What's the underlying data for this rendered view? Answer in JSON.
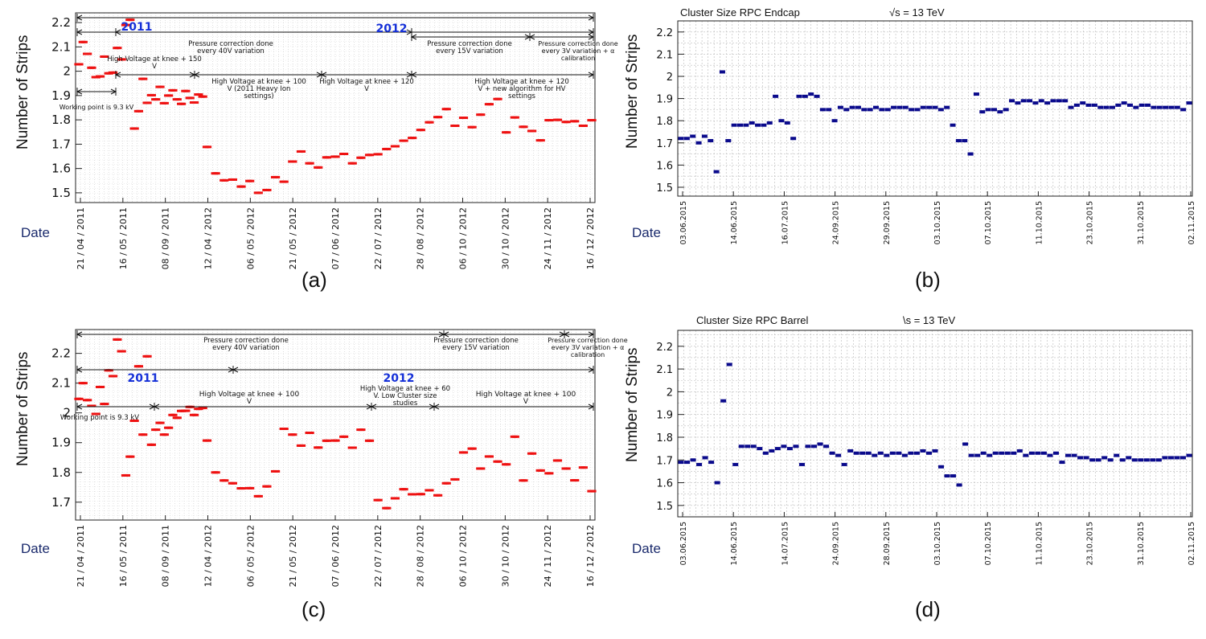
{
  "common": {
    "ylabel": "Number of Strips",
    "date_label": "Date"
  },
  "chart_data": [
    {
      "id": "a",
      "caption": "(a)",
      "type": "scatter",
      "ylabel": "Number of Strips",
      "xlabel": "Date",
      "ylim": [
        1.46,
        2.24
      ],
      "yticks": [
        1.5,
        1.6,
        1.7,
        1.8,
        1.9,
        2,
        2.1,
        2.2
      ],
      "ytick_labels": [
        "1.5",
        "1.6",
        "1.7",
        "1.8",
        "1.9",
        "2",
        "2.1",
        "2.2"
      ],
      "xticks": [
        "21 / 04 / 2011",
        "16 / 05 / 2011",
        "08 / 09 / 2011",
        "12 / 04 / 2012",
        "06 / 05 / 2012",
        "21 / 05 / 2012",
        "07 / 06 / 2012",
        "22 / 07 / 2012",
        "28 / 08 / 2012",
        "06 / 10 / 2012",
        "30 / 10 / 2012",
        "24 / 11 / 2012",
        "16 / 12 / 2012"
      ],
      "series": [
        {
          "color": "#ee1111",
          "marker": "dash",
          "x": [
            0.0,
            0.1,
            0.2,
            0.3,
            0.4,
            0.5,
            0.6,
            0.7,
            0.8,
            0.9,
            1.0,
            1.1,
            1.2,
            1.3,
            1.4,
            1.5,
            1.6,
            1.7,
            1.8,
            1.9,
            2.0,
            2.1,
            2.2,
            2.3,
            2.4,
            2.5,
            2.6,
            2.7,
            2.8,
            2.9,
            3.0,
            3.2,
            3.4,
            3.6,
            3.8,
            4.0,
            4.2,
            4.4,
            4.6,
            4.8,
            5.0,
            5.2,
            5.4,
            5.6,
            5.8,
            6.0,
            6.2,
            6.4,
            6.6,
            6.8,
            7.0,
            7.2,
            7.4,
            7.6,
            7.8,
            8.0,
            8.2,
            8.4,
            8.6,
            8.8,
            9.0,
            9.2,
            9.4,
            9.6,
            9.8,
            10.0,
            10.2,
            10.4,
            10.6,
            10.8,
            11.0,
            11.2,
            11.4,
            11.6,
            11.8,
            12.0
          ],
          "y": [
            2.02,
            2.12,
            2.08,
            2.01,
            1.98,
            1.97,
            2.06,
            2.0,
            1.99,
            2.1,
            2.04,
            2.19,
            2.22,
            1.76,
            1.84,
            1.96,
            1.87,
            1.91,
            1.88,
            1.94,
            1.86,
            1.9,
            1.93,
            1.88,
            1.87,
            1.91,
            1.89,
            1.88,
            1.9,
            1.9,
            1.68,
            1.58,
            1.56,
            1.55,
            1.53,
            1.54,
            1.5,
            1.52,
            1.56,
            1.55,
            1.62,
            1.67,
            1.63,
            1.6,
            1.65,
            1.64,
            1.66,
            1.63,
            1.64,
            1.66,
            1.65,
            1.68,
            1.7,
            1.71,
            1.73,
            1.75,
            1.79,
            1.82,
            1.84,
            1.78,
            1.8,
            1.77,
            1.83,
            1.86,
            1.89,
            1.74,
            1.81,
            1.78,
            1.75,
            1.72,
            1.79,
            1.8,
            1.8,
            1.79,
            1.78,
            1.79
          ]
        }
      ],
      "annotations": [
        {
          "text": "2011",
          "emphasis": "year"
        },
        {
          "text": "2012",
          "emphasis": "year"
        },
        {
          "text": "Pressure correction done every 40V variation"
        },
        {
          "text": "Pressure correction done every 15V variation"
        },
        {
          "text": "Pressure correction done every 3V variation + α calibration"
        },
        {
          "text": "High Voltage at knee + 150 V"
        },
        {
          "text": "High Voltage at knee + 100 V (2011 Heavy Ion settings)"
        },
        {
          "text": "High Voltage at knee + 120 V"
        },
        {
          "text": "High Voltage at knee + 120 V + new algorithm for HV settings"
        },
        {
          "text": "Working point is 9.3 kV"
        }
      ]
    },
    {
      "id": "b",
      "caption": "(b)",
      "type": "scatter",
      "title": "Cluster Size RPC Endcap",
      "title_right": "√s = 13 TeV",
      "ylabel": "Number of Strips",
      "xlabel": "Date",
      "ylim": [
        1.46,
        2.25
      ],
      "yticks": [
        1.5,
        1.6,
        1.7,
        1.8,
        1.9,
        2,
        2.1,
        2.2
      ],
      "ytick_labels": [
        "1.5",
        "1.6",
        "1.7",
        "1.8",
        "1.9",
        "2",
        "2.1",
        "2.2"
      ],
      "xticks": [
        "03.06.2015",
        "14.06.2015",
        "16.07.2015",
        "24.09.2015",
        "29.09.2015",
        "03.10.2015",
        "07.10.2015",
        "11.10.2015",
        "23.10.2015",
        "31.10.2015",
        "02.11.2015"
      ],
      "series": [
        {
          "color": "#0a0a8c",
          "marker": "square",
          "y": [
            1.72,
            1.72,
            1.73,
            1.7,
            1.73,
            1.71,
            1.57,
            2.02,
            1.71,
            1.78,
            1.78,
            1.78,
            1.79,
            1.78,
            1.78,
            1.79,
            1.91,
            1.8,
            1.79,
            1.72,
            1.91,
            1.91,
            1.92,
            1.91,
            1.85,
            1.85,
            1.8,
            1.86,
            1.85,
            1.86,
            1.86,
            1.85,
            1.85,
            1.86,
            1.85,
            1.85,
            1.86,
            1.86,
            1.86,
            1.85,
            1.85,
            1.86,
            1.86,
            1.86,
            1.85,
            1.86,
            1.78,
            1.71,
            1.71,
            1.65,
            1.92,
            1.84,
            1.85,
            1.85,
            1.84,
            1.85,
            1.89,
            1.88,
            1.89,
            1.89,
            1.88,
            1.89,
            1.88,
            1.89,
            1.89,
            1.89,
            1.86,
            1.87,
            1.88,
            1.87,
            1.87,
            1.86,
            1.86,
            1.86,
            1.87,
            1.88,
            1.87,
            1.86,
            1.87,
            1.87,
            1.86,
            1.86,
            1.86,
            1.86,
            1.86,
            1.85,
            1.88
          ]
        }
      ]
    },
    {
      "id": "c",
      "caption": "(c)",
      "type": "scatter",
      "ylabel": "Number of Strips",
      "xlabel": "Date",
      "ylim": [
        1.64,
        2.28
      ],
      "yticks": [
        1.7,
        1.8,
        1.9,
        2,
        2.1,
        2.2
      ],
      "ytick_labels": [
        "1.7",
        "1.8",
        "1.9",
        "2",
        "2.1",
        "2.2"
      ],
      "xticks": [
        "21 / 04 / 2011",
        "16 / 05 / 2011",
        "08 / 09 / 2011",
        "12 / 04 / 2012",
        "06 / 05 / 2012",
        "21 / 05 / 2012",
        "07 / 06 / 2012",
        "22 / 07 / 2012",
        "28 / 08 / 2012",
        "06 / 10 / 2012",
        "30 / 10 / 2012",
        "24 / 11 / 2012",
        "16 / 12 / 2012"
      ],
      "series": [
        {
          "color": "#ee1111",
          "marker": "dash",
          "x": [
            0.0,
            0.1,
            0.2,
            0.3,
            0.4,
            0.5,
            0.6,
            0.7,
            0.8,
            0.9,
            1.0,
            1.1,
            1.2,
            1.3,
            1.4,
            1.5,
            1.6,
            1.7,
            1.8,
            1.9,
            2.0,
            2.1,
            2.2,
            2.3,
            2.4,
            2.5,
            2.6,
            2.7,
            2.8,
            2.9,
            3.0,
            3.2,
            3.4,
            3.6,
            3.8,
            4.0,
            4.2,
            4.4,
            4.6,
            4.8,
            5.0,
            5.2,
            5.4,
            5.6,
            5.8,
            6.0,
            6.2,
            6.4,
            6.6,
            6.8,
            7.0,
            7.2,
            7.4,
            7.6,
            7.8,
            8.0,
            8.2,
            8.4,
            8.6,
            8.8,
            9.0,
            9.2,
            9.4,
            9.6,
            9.8,
            10.0,
            10.2,
            10.4,
            10.6,
            10.8,
            11.0,
            11.2,
            11.4,
            11.6,
            11.8,
            12.0
          ],
          "y": [
            2.04,
            2.1,
            2.05,
            2.02,
            2.0,
            2.08,
            2.03,
            2.15,
            2.12,
            2.25,
            2.2,
            1.79,
            1.86,
            1.97,
            2.16,
            1.92,
            2.19,
            1.9,
            1.94,
            1.97,
            1.92,
            1.95,
            2.0,
            1.98,
            2.01,
            2.0,
            2.02,
            2.0,
            2.01,
            2.02,
            1.9,
            1.8,
            1.78,
            1.76,
            1.75,
            1.74,
            1.72,
            1.76,
            1.8,
            1.95,
            1.92,
            1.89,
            1.94,
            1.88,
            1.91,
            1.9,
            1.92,
            1.89,
            1.94,
            1.91,
            1.7,
            1.68,
            1.72,
            1.74,
            1.73,
            1.72,
            1.74,
            1.73,
            1.76,
            1.78,
            1.86,
            1.88,
            1.82,
            1.85,
            1.84,
            1.82,
            1.92,
            1.78,
            1.86,
            1.81,
            1.79,
            1.84,
            1.82,
            1.77,
            1.82,
            1.73
          ]
        }
      ],
      "annotations": [
        {
          "text": "Pressure correction done every 40V variation"
        },
        {
          "text": "Pressure correction done every 15V variation"
        },
        {
          "text": "Pressure correction done every 3V variation + α calibration"
        },
        {
          "text": "2011",
          "emphasis": "year"
        },
        {
          "text": "2012",
          "emphasis": "year"
        },
        {
          "text": "High Voltage at knee + 100 V"
        },
        {
          "text": "High Voltage at knee + 60 V. Low Cluster size studies"
        },
        {
          "text": "High Voltage at knee + 100 V"
        },
        {
          "text": "Working point is 9.3 kV"
        }
      ]
    },
    {
      "id": "d",
      "caption": "(d)",
      "type": "scatter",
      "title": "Cluster Size RPC Barrel",
      "title_right": "\\s = 13 TeV",
      "ylabel": "Number of Strips",
      "xlabel": "Date",
      "ylim": [
        1.45,
        2.27
      ],
      "yticks": [
        1.5,
        1.6,
        1.7,
        1.8,
        1.9,
        2,
        2.1,
        2.2
      ],
      "ytick_labels": [
        "1.5",
        "1.6",
        "1.7",
        "1.8",
        "1.9",
        "2",
        "2.1",
        "2.2"
      ],
      "xticks": [
        "03.06.2015",
        "14.06.2015",
        "14.07.2015",
        "24.09.2015",
        "28.09.2015",
        "03.10.2015",
        "07.10.2015",
        "11.10.2015",
        "23.10.2015",
        "31.10.2015",
        "02.11.2015"
      ],
      "series": [
        {
          "color": "#0a0a8c",
          "marker": "square",
          "y": [
            1.69,
            1.69,
            1.7,
            1.68,
            1.71,
            1.69,
            1.6,
            1.96,
            2.12,
            1.68,
            1.76,
            1.76,
            1.76,
            1.75,
            1.73,
            1.74,
            1.75,
            1.76,
            1.75,
            1.76,
            1.68,
            1.76,
            1.76,
            1.77,
            1.76,
            1.73,
            1.72,
            1.68,
            1.74,
            1.73,
            1.73,
            1.73,
            1.72,
            1.73,
            1.72,
            1.73,
            1.73,
            1.72,
            1.73,
            1.73,
            1.74,
            1.73,
            1.74,
            1.67,
            1.63,
            1.63,
            1.59,
            1.77,
            1.72,
            1.72,
            1.73,
            1.72,
            1.73,
            1.73,
            1.73,
            1.73,
            1.74,
            1.72,
            1.73,
            1.73,
            1.73,
            1.72,
            1.73,
            1.69,
            1.72,
            1.72,
            1.71,
            1.71,
            1.7,
            1.7,
            1.71,
            1.7,
            1.72,
            1.7,
            1.71,
            1.7,
            1.7,
            1.7,
            1.7,
            1.7,
            1.71,
            1.71,
            1.71,
            1.71,
            1.72
          ]
        }
      ]
    }
  ]
}
